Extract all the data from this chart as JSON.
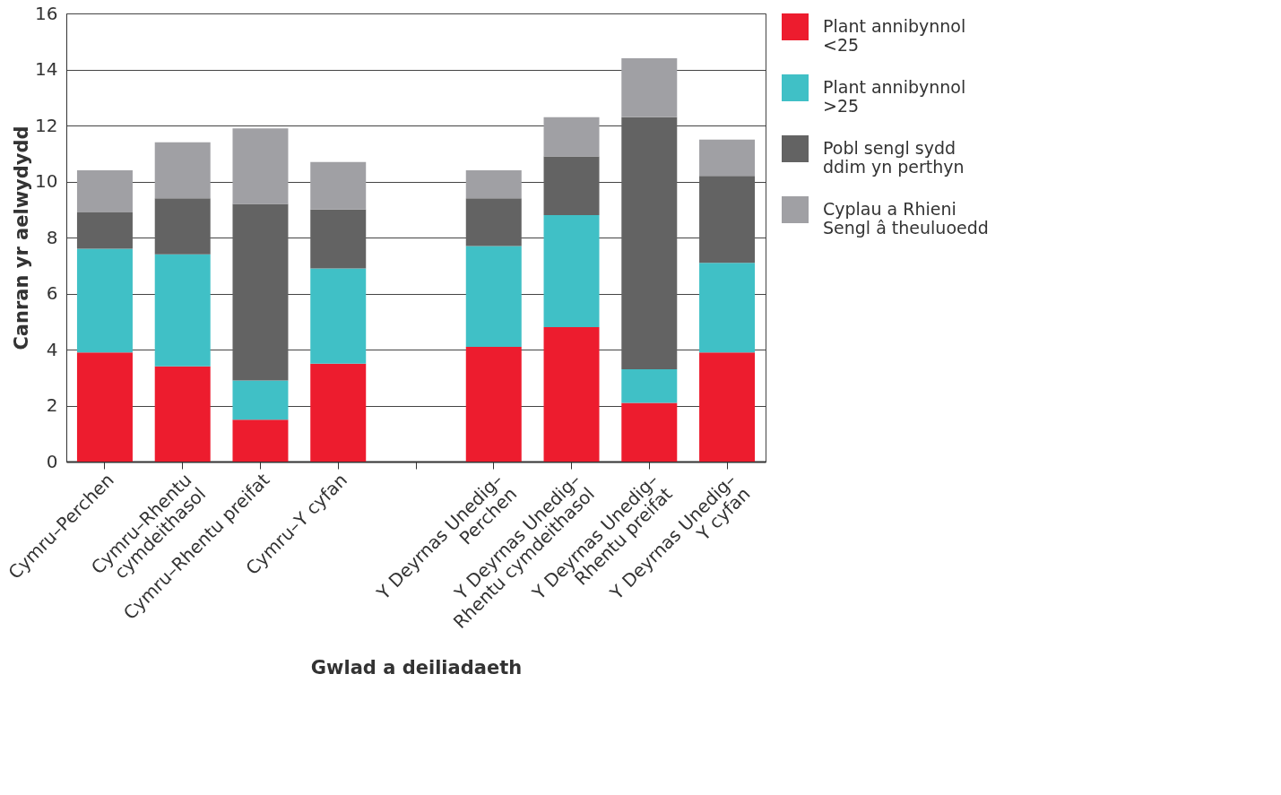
{
  "chart_data": {
    "type": "bar",
    "stacked": true,
    "xlabel": "Gwlad a deiliadaeth",
    "ylabel": "Canran yr aelwydydd",
    "categories": [
      "Cymru–Perchen",
      "Cymru–Rhentu\ncymdeithasol",
      "Cymru–Rhentu preifat",
      "Cymru–Y cyfan",
      null,
      "Y Deyrnas Unedig–\nPerchen",
      "Y Deyrnas Unedig–\nRhentu cymdeithasol",
      "Y Deyrnas Unedig–\nRhentu preifat",
      "Y Deyrnas Unedig–\nY cyfan"
    ],
    "series": [
      {
        "name": "Plant annibynnol\n<25",
        "color": "#ed1c2e",
        "values": [
          3.9,
          3.4,
          1.5,
          3.5,
          null,
          4.1,
          4.8,
          2.1,
          3.9
        ]
      },
      {
        "name": "Plant annibynnol\n>25",
        "color": "#40c0c6",
        "values": [
          3.7,
          4.0,
          1.4,
          3.4,
          null,
          3.6,
          4.0,
          1.2,
          3.2
        ]
      },
      {
        "name": "Pobl sengl sydd\nddim yn perthyn",
        "color": "#636363",
        "values": [
          1.3,
          2.0,
          6.3,
          2.1,
          null,
          1.7,
          2.1,
          9.0,
          3.1
        ]
      },
      {
        "name": "Cyplau a Rhieni\nSengl â theuluoedd",
        "color": "#a0a0a4",
        "values": [
          1.5,
          2.0,
          2.7,
          1.7,
          null,
          1.0,
          1.4,
          2.1,
          1.3
        ]
      }
    ],
    "ylim": [
      0,
      16
    ],
    "yticks": [
      0,
      2,
      4,
      6,
      8,
      10,
      12,
      14,
      16
    ],
    "grid": "y",
    "legend": "top right"
  }
}
